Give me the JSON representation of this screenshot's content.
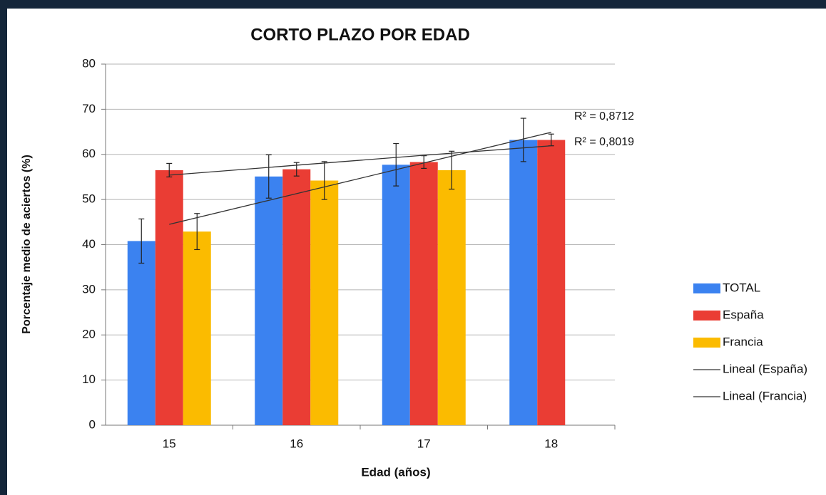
{
  "chart_data": {
    "type": "bar",
    "title": "CORTO PLAZO POR EDAD",
    "x_label": "Edad (años)",
    "y_label": "Porcentaje medio de aciertos (%)",
    "categories": [
      "15",
      "16",
      "17",
      "18"
    ],
    "series": [
      {
        "name": "TOTAL",
        "color": "#3b82f0",
        "values": [
          40.8,
          55.1,
          57.7,
          63.2
        ],
        "errors": [
          4.9,
          4.8,
          4.7,
          4.8
        ]
      },
      {
        "name": "España",
        "color": "#ea3d34",
        "values": [
          56.5,
          56.7,
          58.3,
          63.2
        ],
        "errors": [
          1.5,
          1.5,
          1.4,
          1.3
        ]
      },
      {
        "name": "Francia",
        "color": "#fbbb00",
        "values": [
          42.9,
          54.2,
          56.5,
          null
        ],
        "errors": [
          4.0,
          4.2,
          4.2,
          null
        ]
      }
    ],
    "trendlines": [
      {
        "name": "Lineal (España)",
        "color": "#333333",
        "values": [
          55.4,
          57.6,
          59.8,
          61.9
        ]
      },
      {
        "name": "Lineal (Francia)",
        "color": "#333333",
        "values": [
          44.5,
          51.3,
          58.1,
          64.9
        ]
      }
    ],
    "annotations": [
      "R² = 0,8712",
      "R² = 0,8019"
    ],
    "ylim": [
      0,
      80
    ],
    "yticks": [
      0,
      10,
      20,
      30,
      40,
      50,
      60,
      70,
      80
    ],
    "grid": true,
    "legend": "right"
  }
}
